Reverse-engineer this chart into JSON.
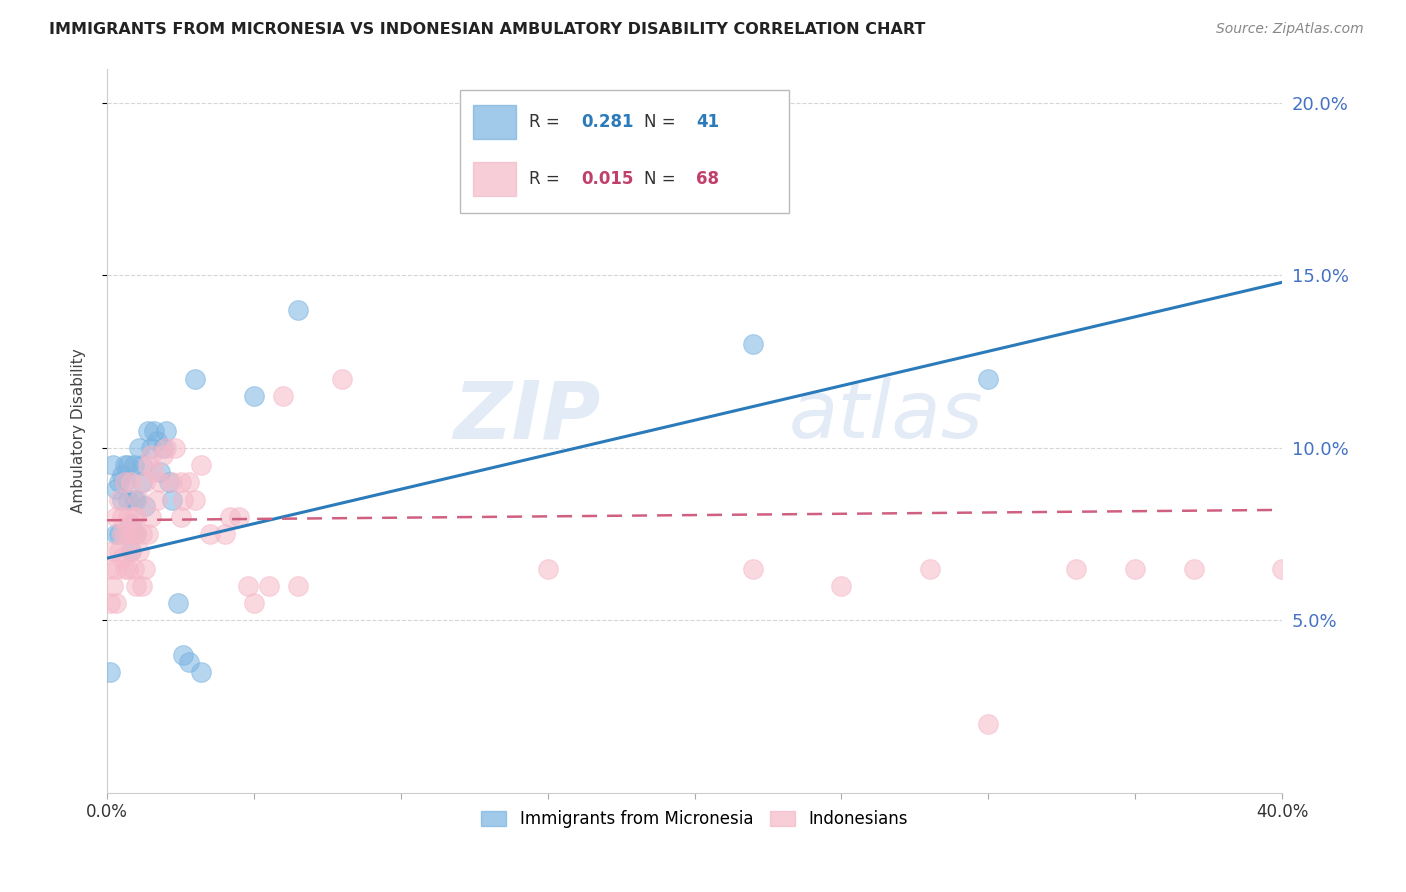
{
  "title": "IMMIGRANTS FROM MICRONESIA VS INDONESIAN AMBULATORY DISABILITY CORRELATION CHART",
  "source": "Source: ZipAtlas.com",
  "ylabel": "Ambulatory Disability",
  "right_yticks": [
    5.0,
    10.0,
    15.0,
    20.0
  ],
  "watermark_line1": "ZIP",
  "watermark_line2": "atlas",
  "micronesia_x": [
    0.001,
    0.002,
    0.003,
    0.003,
    0.004,
    0.004,
    0.005,
    0.005,
    0.006,
    0.006,
    0.007,
    0.007,
    0.007,
    0.008,
    0.008,
    0.009,
    0.009,
    0.01,
    0.01,
    0.011,
    0.012,
    0.012,
    0.013,
    0.014,
    0.015,
    0.016,
    0.017,
    0.018,
    0.019,
    0.02,
    0.021,
    0.022,
    0.024,
    0.026,
    0.028,
    0.03,
    0.032,
    0.05,
    0.065,
    0.22,
    0.3
  ],
  "micronesia_y": [
    0.035,
    0.095,
    0.088,
    0.075,
    0.09,
    0.075,
    0.092,
    0.085,
    0.09,
    0.095,
    0.085,
    0.075,
    0.095,
    0.078,
    0.07,
    0.095,
    0.085,
    0.085,
    0.075,
    0.1,
    0.09,
    0.095,
    0.083,
    0.105,
    0.1,
    0.105,
    0.102,
    0.093,
    0.1,
    0.105,
    0.09,
    0.085,
    0.055,
    0.04,
    0.038,
    0.12,
    0.035,
    0.115,
    0.14,
    0.13,
    0.12
  ],
  "indonesian_x": [
    0.001,
    0.001,
    0.002,
    0.002,
    0.003,
    0.003,
    0.003,
    0.004,
    0.004,
    0.005,
    0.005,
    0.005,
    0.006,
    0.006,
    0.006,
    0.007,
    0.007,
    0.007,
    0.008,
    0.008,
    0.008,
    0.009,
    0.009,
    0.01,
    0.01,
    0.01,
    0.011,
    0.011,
    0.012,
    0.012,
    0.013,
    0.013,
    0.014,
    0.014,
    0.015,
    0.015,
    0.016,
    0.017,
    0.018,
    0.019,
    0.02,
    0.022,
    0.023,
    0.025,
    0.025,
    0.026,
    0.028,
    0.03,
    0.032,
    0.035,
    0.04,
    0.042,
    0.045,
    0.048,
    0.05,
    0.055,
    0.06,
    0.065,
    0.08,
    0.15,
    0.22,
    0.25,
    0.28,
    0.3,
    0.33,
    0.35,
    0.37,
    0.4
  ],
  "indonesian_y": [
    0.055,
    0.065,
    0.06,
    0.07,
    0.065,
    0.08,
    0.055,
    0.07,
    0.085,
    0.08,
    0.068,
    0.075,
    0.075,
    0.09,
    0.065,
    0.075,
    0.08,
    0.065,
    0.09,
    0.075,
    0.07,
    0.065,
    0.08,
    0.08,
    0.06,
    0.075,
    0.085,
    0.07,
    0.075,
    0.06,
    0.09,
    0.065,
    0.075,
    0.095,
    0.08,
    0.098,
    0.093,
    0.085,
    0.09,
    0.098,
    0.1,
    0.09,
    0.1,
    0.09,
    0.08,
    0.085,
    0.09,
    0.085,
    0.095,
    0.075,
    0.075,
    0.08,
    0.08,
    0.06,
    0.055,
    0.06,
    0.115,
    0.06,
    0.12,
    0.065,
    0.065,
    0.06,
    0.065,
    0.02,
    0.065,
    0.065,
    0.065,
    0.065
  ],
  "blue_line_x": [
    0.0,
    0.4
  ],
  "blue_line_y": [
    0.068,
    0.148
  ],
  "pink_line_x": [
    0.0,
    0.4
  ],
  "pink_line_y": [
    0.079,
    0.082
  ],
  "blue_scatter_color": "#7ab3e0",
  "pink_scatter_color": "#f5b8c8",
  "blue_line_color": "#2b7bba",
  "pink_line_color": "#d06080",
  "background_color": "#ffffff",
  "grid_color": "#cccccc",
  "right_axis_color": "#4472c4",
  "xlim": [
    0.0,
    0.4
  ],
  "ylim": [
    0.0,
    0.21
  ],
  "legend_R1": "0.281",
  "legend_N1": "41",
  "legend_R2": "0.015",
  "legend_N2": "68",
  "legend_text_color": "#333333",
  "legend_blue_val_color": "#2b7bba",
  "legend_pink_val_color": "#c0406a"
}
